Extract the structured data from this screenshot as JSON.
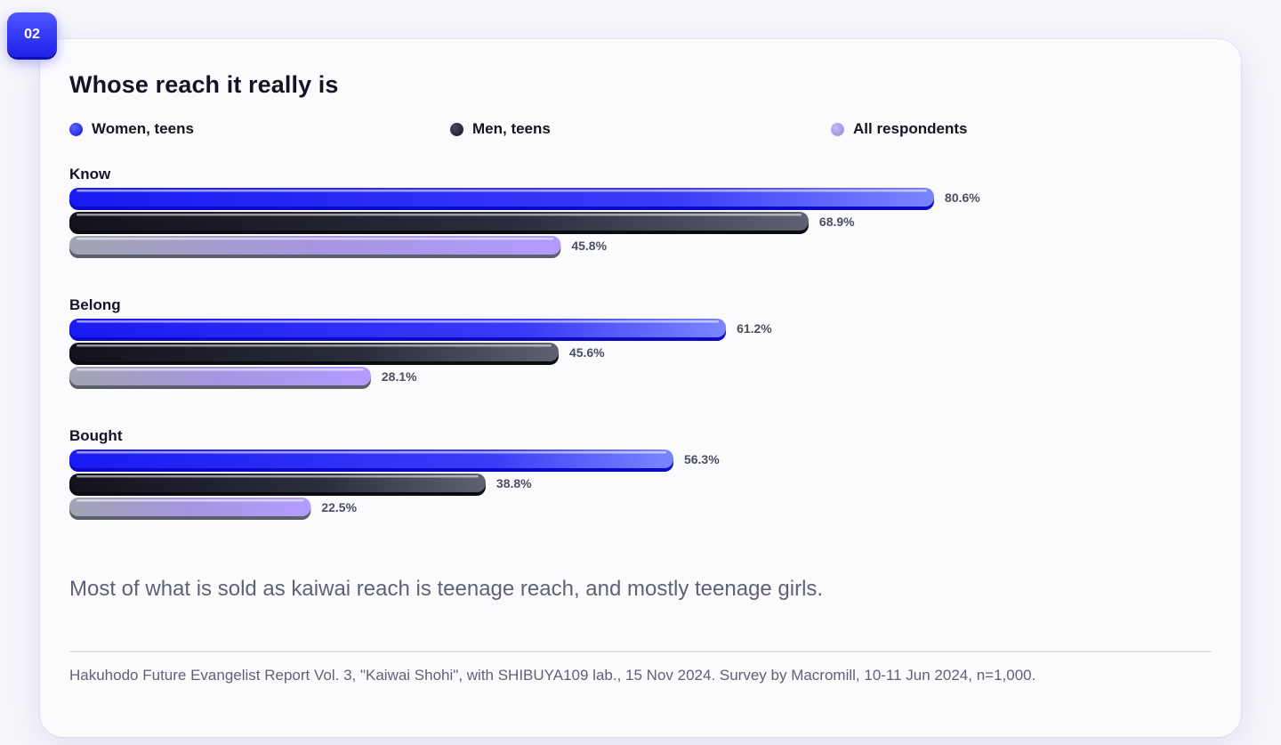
{
  "badge": "02",
  "title": "Whose reach it really is",
  "takeaway": "Most of what is sold as kaiwai reach is teenage reach, and mostly teenage girls.",
  "source": "Hakuhodo Future Evangelist Report Vol. 3, \"Kaiwai Shohi\", with SHIBUYA109 lab., 15 Nov 2024. Survey by Macromill, 10-11 Jun 2024, n=1,000.",
  "colors": {
    "women_teens": "#2626f0",
    "men_teens": "#1c1c2a",
    "all_respondents": "#a99ee8",
    "value_label": "#4b4e5e"
  },
  "chart_data": {
    "type": "bar",
    "orientation": "horizontal",
    "categories": [
      "Know",
      "Belong",
      "Bought"
    ],
    "unit": "%",
    "series": [
      {
        "name": "Women, teens",
        "values": [
          80.6,
          61.2,
          56.3
        ],
        "labels": [
          "80.6%",
          "61.2%",
          "56.3%"
        ]
      },
      {
        "name": "Men, teens",
        "values": [
          68.9,
          45.6,
          38.8
        ],
        "labels": [
          "68.9%",
          "45.6%",
          "38.8%"
        ]
      },
      {
        "name": "All respondents",
        "values": [
          45.8,
          28.1,
          22.5
        ],
        "labels": [
          "45.8%",
          "28.1%",
          "22.5%"
        ]
      }
    ],
    "xlim": [
      0,
      100
    ],
    "legend_position": "top",
    "grid": false
  }
}
